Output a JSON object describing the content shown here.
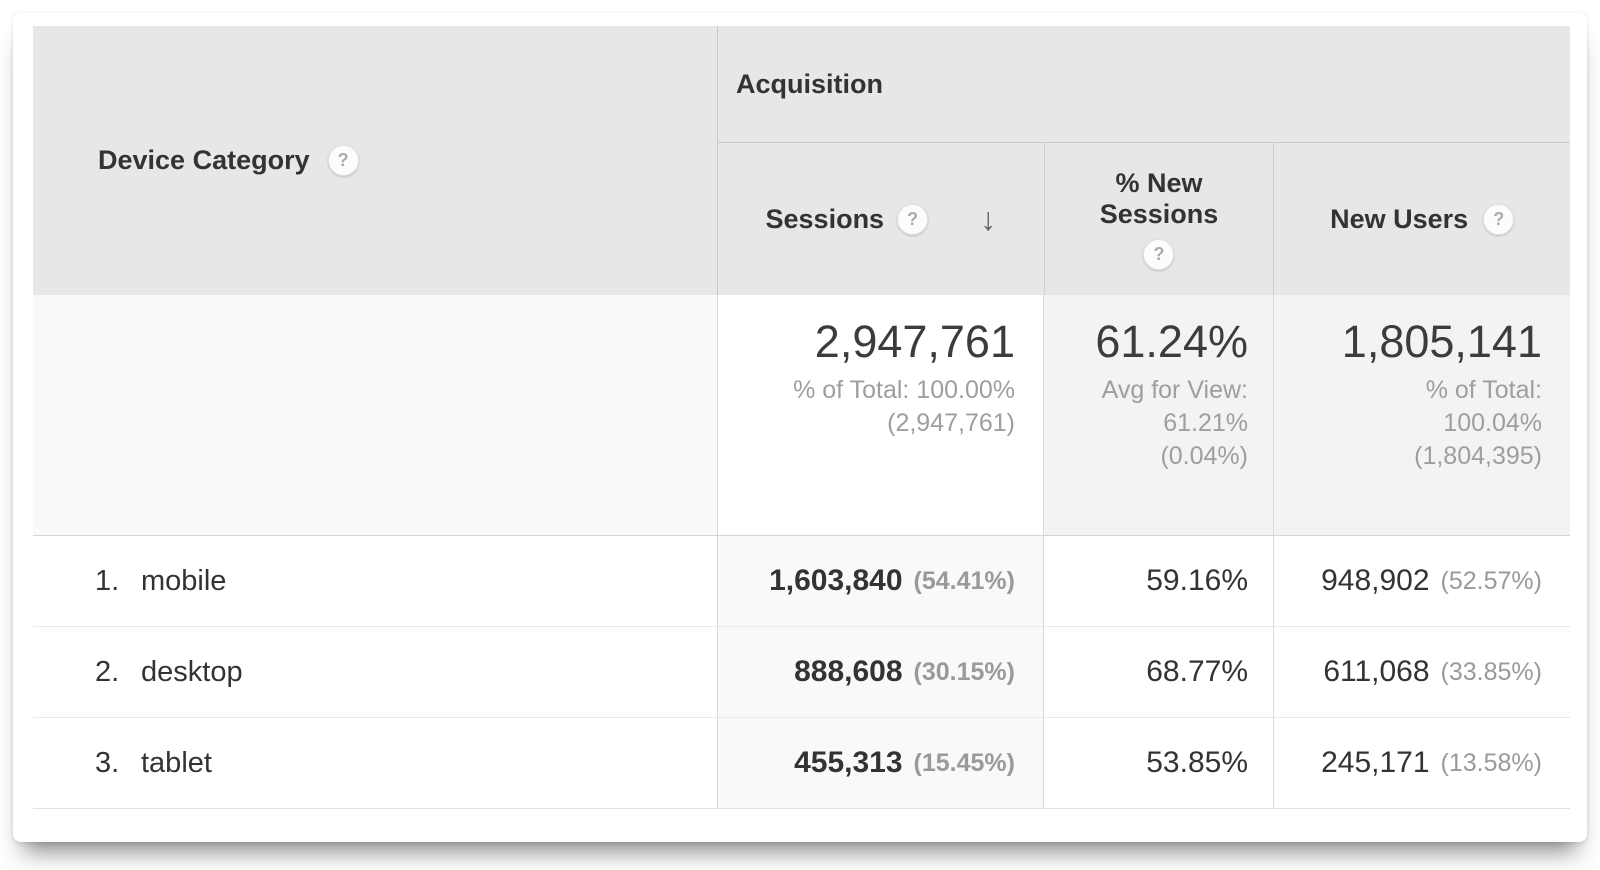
{
  "icons": {
    "help": "?",
    "sort_desc": "↓"
  },
  "colors": {
    "header_bg": "#e7e7e7",
    "sorted_column_bg": "#f9f9f9",
    "summary_metric_bg": "#f3f3f3",
    "border": "#c9c9c9",
    "text_primary": "#333333",
    "text_secondary": "#9a9a9a"
  },
  "table": {
    "dimension_header": {
      "label": "Device Category"
    },
    "group_header": {
      "label": "Acquisition"
    },
    "columns": [
      {
        "label": "Sessions",
        "sorted": "desc"
      },
      {
        "label_line1": "% New",
        "label_line2": "Sessions"
      },
      {
        "label": "New Users"
      }
    ],
    "summary": {
      "sessions": {
        "value": "2,947,761",
        "line1": "% of Total: 100.00%",
        "line2": "(2,947,761)"
      },
      "new_sessions": {
        "value": "61.24%",
        "line1": "Avg for View:",
        "line2": "61.21%",
        "line3": "(0.04%)"
      },
      "new_users": {
        "value": "1,805,141",
        "line1": "% of Total:",
        "line2": "100.04%",
        "line3": "(1,804,395)"
      }
    },
    "rows": [
      {
        "index": "1.",
        "category": "mobile",
        "sessions": "1,603,840",
        "sessions_pct": "(54.41%)",
        "new_sessions": "59.16%",
        "new_users": "948,902",
        "new_users_pct": "(52.57%)"
      },
      {
        "index": "2.",
        "category": "desktop",
        "sessions": "888,608",
        "sessions_pct": "(30.15%)",
        "new_sessions": "68.77%",
        "new_users": "611,068",
        "new_users_pct": "(33.85%)"
      },
      {
        "index": "3.",
        "category": "tablet",
        "sessions": "455,313",
        "sessions_pct": "(15.45%)",
        "new_sessions": "53.85%",
        "new_users": "245,171",
        "new_users_pct": "(13.58%)"
      }
    ]
  }
}
